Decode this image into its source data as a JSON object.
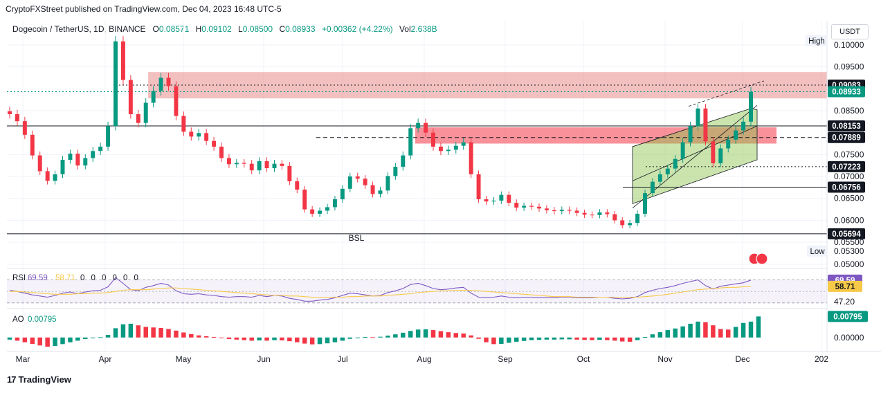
{
  "header": {
    "credit": "CryptoFXStreet published on TradingView.com, Dec 04, 2023 16:48 UTC-5",
    "symbol": "Dogecoin / TetherUS, 1D, BINANCE",
    "open_label": "O",
    "open": "0.08571",
    "high_label": "H",
    "high": "0.09102",
    "low_label": "L",
    "low": "0.08500",
    "close_label": "C",
    "close": "0.08933",
    "change": "+0.00362 (+4.22%)",
    "vol_label": "Vol",
    "vol": "2.638B",
    "unit": "USDT"
  },
  "colors": {
    "up": "#089981",
    "down": "#f23645",
    "rsi": "#7e57c2",
    "rsi_ma": "#f7c948",
    "zone": "#e57373",
    "channel": "#8bc34a"
  },
  "chart_data": [
    {
      "type": "candlestick",
      "title": "Dogecoin / TetherUS, 1D, BINANCE",
      "x_tick_labels": [
        "Mar",
        "Apr",
        "May",
        "Jun",
        "Jul",
        "Aug",
        "Sep",
        "Oct",
        "Nov",
        "Dec",
        "202"
      ],
      "y_tick_labels": [
        "0.10000",
        "0.09500",
        "0.08500",
        "0.07500",
        "0.07000",
        "0.06500",
        "0.06000",
        "0.05500",
        "0.05000"
      ],
      "ylim": [
        0.0495,
        0.1055
      ],
      "price_labels": [
        {
          "label": "High",
          "value": 0.1008
        },
        {
          "label": "Low",
          "value": 0.053,
          "text": "0.05300"
        }
      ],
      "levels": [
        {
          "value": 0.09083,
          "text": "0.09083",
          "style": "dotted",
          "badge": "dark"
        },
        {
          "value": 0.08933,
          "text": "0.08933",
          "style": "dotted",
          "badge": "green"
        },
        {
          "value": 0.08153,
          "text": "0.08153",
          "style": "solid",
          "badge": "dark"
        },
        {
          "value": 0.07889,
          "text": "0.07889",
          "style": "dashed",
          "badge": "dark"
        },
        {
          "value": 0.07223,
          "text": "0.07223",
          "style": "dotted",
          "badge": "dark"
        },
        {
          "value": 0.06756,
          "text": "0.06756",
          "style": "solid",
          "badge": "dark"
        },
        {
          "value": 0.05694,
          "text": "0.05694",
          "style": "solid",
          "badge": "dark"
        }
      ],
      "annotations": [
        {
          "text": "BSL",
          "value": 0.056
        }
      ],
      "close_series": [
        0.0842,
        0.0826,
        0.0795,
        0.0748,
        0.0712,
        0.069,
        0.0705,
        0.0738,
        0.0752,
        0.0725,
        0.0742,
        0.0758,
        0.0768,
        0.0815,
        0.1008,
        0.092,
        0.0842,
        0.0822,
        0.0868,
        0.0895,
        0.0925,
        0.0906,
        0.0838,
        0.0802,
        0.0791,
        0.0799,
        0.0781,
        0.0768,
        0.0742,
        0.0728,
        0.0731,
        0.0729,
        0.0714,
        0.0735,
        0.0719,
        0.0729,
        0.0724,
        0.0689,
        0.067,
        0.0625,
        0.0615,
        0.0622,
        0.063,
        0.0648,
        0.0672,
        0.07,
        0.0695,
        0.068,
        0.066,
        0.0668,
        0.0701,
        0.0722,
        0.0748,
        0.081,
        0.0822,
        0.08,
        0.0768,
        0.0758,
        0.0761,
        0.077,
        0.0778,
        0.0705,
        0.0648,
        0.0643,
        0.0645,
        0.0658,
        0.064,
        0.0629,
        0.0633,
        0.0631,
        0.0627,
        0.0623,
        0.0621,
        0.0624,
        0.0622,
        0.0617,
        0.0613,
        0.0612,
        0.0618,
        0.0614,
        0.06,
        0.0589,
        0.0594,
        0.0615,
        0.0662,
        0.0688,
        0.0705,
        0.0718,
        0.074,
        0.0778,
        0.0815,
        0.0855,
        0.078,
        0.073,
        0.0764,
        0.0784,
        0.0805,
        0.0825,
        0.0893
      ]
    },
    {
      "type": "line",
      "name": "RSI",
      "title": "RSI",
      "values_text": [
        "69.59",
        "58.71"
      ],
      "hidden_values": [
        "0",
        "0",
        "0",
        "0",
        "0",
        "0"
      ],
      "scale_labels": [
        "69.59",
        "58.71",
        "47.20"
      ],
      "ylim": [
        25,
        85
      ],
      "series": [
        {
          "name": "RSI",
          "values": [
            52,
            50,
            47,
            44,
            42,
            40,
            43,
            47,
            49,
            46,
            49,
            51,
            52,
            58,
            74,
            64,
            53,
            51,
            57,
            60,
            64,
            61,
            51,
            46,
            45,
            46,
            44,
            43,
            41,
            40,
            41,
            41,
            40,
            43,
            41,
            43,
            42,
            38,
            36,
            33,
            33,
            35,
            36,
            39,
            43,
            47,
            46,
            44,
            42,
            43,
            48,
            51,
            55,
            62,
            64,
            60,
            55,
            53,
            54,
            56,
            57,
            47,
            40,
            39,
            40,
            42,
            40,
            39,
            40,
            40,
            39,
            39,
            39,
            40,
            40,
            39,
            39,
            39,
            40,
            40,
            38,
            37,
            38,
            41,
            48,
            52,
            55,
            57,
            60,
            64,
            67,
            70,
            60,
            54,
            59,
            61,
            63,
            65,
            69.59
          ]
        },
        {
          "name": "MA",
          "values": [
            50,
            50,
            49,
            48,
            47,
            46,
            45,
            45,
            45,
            46,
            46,
            47,
            47,
            48,
            50,
            52,
            53,
            53,
            53,
            54,
            55,
            56,
            56,
            55,
            54,
            53,
            52,
            51,
            50,
            49,
            48,
            47,
            46,
            45,
            44,
            43,
            43,
            42,
            42,
            41,
            40,
            40,
            40,
            40,
            40,
            41,
            41,
            42,
            42,
            42,
            43,
            44,
            45,
            46,
            48,
            49,
            50,
            51,
            51,
            52,
            52,
            52,
            51,
            50,
            49,
            48,
            47,
            46,
            45,
            44,
            43,
            42,
            41,
            41,
            41,
            40,
            40,
            40,
            40,
            40,
            40,
            40,
            40,
            40,
            41,
            42,
            43,
            45,
            47,
            49,
            51,
            53,
            54,
            55,
            56,
            57,
            57,
            58,
            58.71
          ]
        }
      ]
    },
    {
      "type": "bar",
      "name": "AO",
      "title": "AO",
      "value_text": "0.00795",
      "scale_labels": [
        "0.00795",
        "0.00000"
      ],
      "ylim": [
        -0.0045,
        0.0104
      ],
      "values": [
        -0.0008,
        -0.0012,
        -0.0018,
        -0.0024,
        -0.003,
        -0.0035,
        -0.0032,
        -0.0025,
        -0.0018,
        -0.0012,
        -0.0006,
        -0.0002,
        0.0001,
        0.001,
        0.0035,
        0.005,
        0.0052,
        0.0046,
        0.004,
        0.0038,
        0.0036,
        0.0032,
        0.0026,
        0.0019,
        0.0013,
        0.0008,
        0.0005,
        0.0002,
        -0.0002,
        -0.0006,
        -0.0008,
        -0.001,
        -0.0012,
        -0.0011,
        -0.0012,
        -0.001,
        -0.0011,
        -0.0014,
        -0.0018,
        -0.0023,
        -0.0026,
        -0.0025,
        -0.0022,
        -0.0018,
        -0.0012,
        -0.0005,
        0.0,
        0.0002,
        0.0001,
        0.0003,
        0.0007,
        0.0012,
        0.0018,
        0.0025,
        0.003,
        0.0031,
        0.0028,
        0.0024,
        0.002,
        0.0017,
        0.0015,
        0.0008,
        -0.0005,
        -0.0018,
        -0.0025,
        -0.0024,
        -0.002,
        -0.0016,
        -0.0013,
        -0.001,
        -0.0009,
        -0.0008,
        -0.0008,
        -0.0007,
        -0.0007,
        -0.0008,
        -0.0009,
        -0.001,
        -0.0009,
        -0.001,
        -0.0012,
        -0.0015,
        -0.0016,
        -0.001,
        0.0002,
        0.0012,
        0.002,
        0.0028,
        0.0034,
        0.0042,
        0.0052,
        0.006,
        0.0058,
        0.0046,
        0.0032,
        0.003,
        0.004,
        0.0055,
        0.006,
        0.00795
      ]
    }
  ],
  "footer": {
    "mark": "17",
    "brand": "TradingView"
  }
}
